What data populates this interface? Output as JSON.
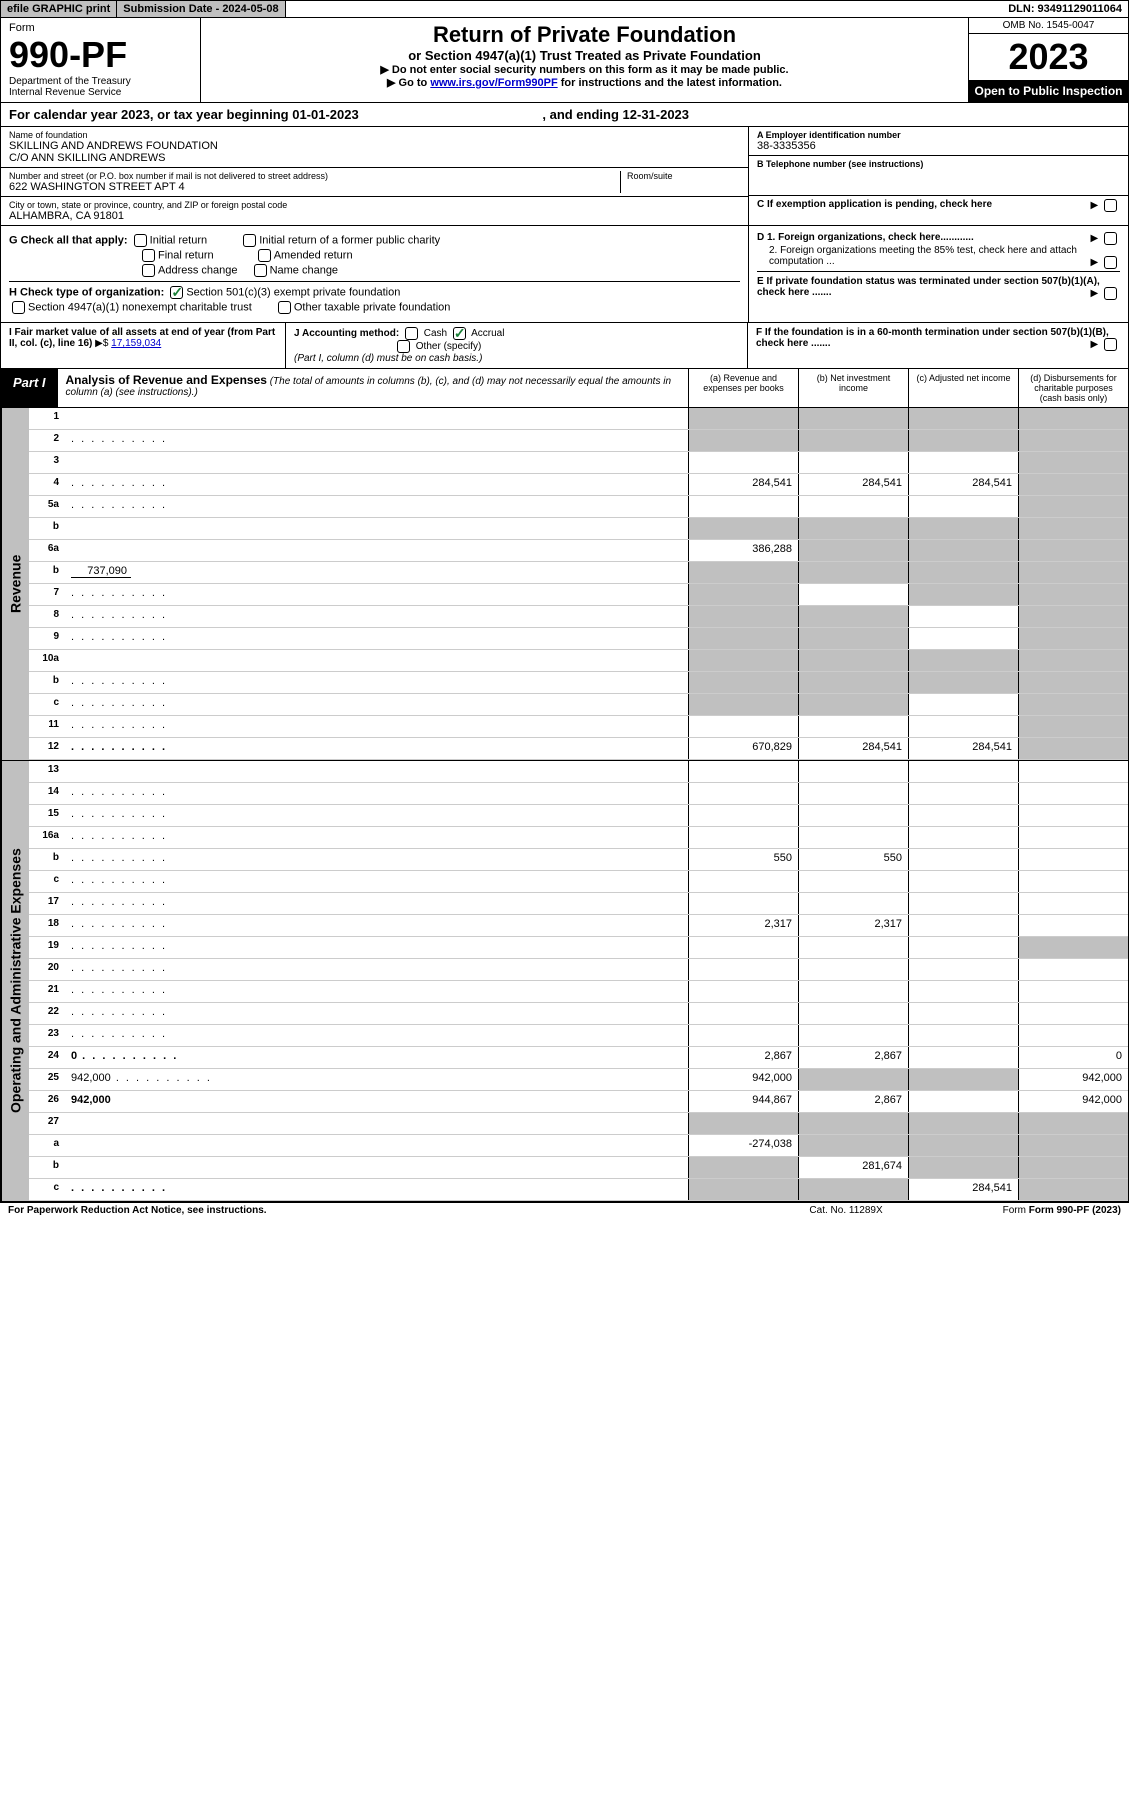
{
  "topbar": {
    "efile": "efile GRAPHIC print",
    "sub_date_label": "Submission Date - 2024-05-08",
    "dln": "DLN: 93491129011064"
  },
  "header": {
    "form_label": "Form",
    "form_no": "990-PF",
    "dept1": "Department of the Treasury",
    "dept2": "Internal Revenue Service",
    "title": "Return of Private Foundation",
    "subtitle": "or Section 4947(a)(1) Trust Treated as Private Foundation",
    "instr1": "▶ Do not enter social security numbers on this form as it may be made public.",
    "instr2_a": "▶ Go to ",
    "instr2_link": "www.irs.gov/Form990PF",
    "instr2_b": " for instructions and the latest information.",
    "omb": "OMB No. 1545-0047",
    "year": "2023",
    "open": "Open to Public Inspection"
  },
  "cal_year": {
    "text_a": "For calendar year 2023, or tax year beginning 01-01-2023",
    "text_b": ", and ending 12-31-2023"
  },
  "entity": {
    "name_label": "Name of foundation",
    "name1": "SKILLING AND ANDREWS FOUNDATION",
    "name2": "C/O ANN SKILLING ANDREWS",
    "addr_label": "Number and street (or P.O. box number if mail is not delivered to street address)",
    "addr": "622 WASHINGTON STREET APT 4",
    "room_label": "Room/suite",
    "city_label": "City or town, state or province, country, and ZIP or foreign postal code",
    "city": "ALHAMBRA, CA  91801",
    "a_label": "A Employer identification number",
    "a_val": "38-3335356",
    "b_label": "B Telephone number (see instructions)",
    "c_label": "C If exemption application is pending, check here"
  },
  "sectionG": {
    "label": "G Check all that apply:",
    "opts": [
      "Initial return",
      "Initial return of a former public charity",
      "Final return",
      "Amended return",
      "Address change",
      "Name change"
    ]
  },
  "sectionD": {
    "d1": "D 1. Foreign organizations, check here............",
    "d2": "2. Foreign organizations meeting the 85% test, check here and attach computation ...",
    "e": "E  If private foundation status was terminated under section 507(b)(1)(A), check here .......",
    "f": "F  If the foundation is in a 60-month termination under section 507(b)(1)(B), check here ......."
  },
  "sectionH": {
    "label": "H Check type of organization:",
    "opt1": "Section 501(c)(3) exempt private foundation",
    "opt2": "Section 4947(a)(1) nonexempt charitable trust",
    "opt3": "Other taxable private foundation"
  },
  "sectionI": {
    "label": "I Fair market value of all assets at end of year (from Part II, col. (c), line 16)",
    "val": "17,159,034"
  },
  "sectionJ": {
    "label": "J Accounting method:",
    "cash": "Cash",
    "accrual": "Accrual",
    "other": "Other (specify)",
    "note": "(Part I, column (d) must be on cash basis.)"
  },
  "part1": {
    "label": "Part I",
    "title": "Analysis of Revenue and Expenses",
    "note": " (The total of amounts in columns (b), (c), and (d) may not necessarily equal the amounts in column (a) (see instructions).)",
    "col_a": "(a) Revenue and expenses per books",
    "col_b": "(b) Net investment income",
    "col_c": "(c) Adjusted net income",
    "col_d": "(d) Disbursements for charitable purposes (cash basis only)"
  },
  "side": {
    "rev": "Revenue",
    "exp": "Operating and Administrative Expenses"
  },
  "rows": [
    {
      "n": "1",
      "d": "",
      "a": "",
      "b": "",
      "c": "",
      "sa": true,
      "sb": true,
      "sc": true,
      "sd": true
    },
    {
      "n": "2",
      "d": "",
      "dots": true,
      "a": "",
      "b": "",
      "c": "",
      "sa": true,
      "sb": true,
      "sc": true,
      "sd": true
    },
    {
      "n": "3",
      "d": "",
      "a": "",
      "b": "",
      "c": "",
      "sd": true
    },
    {
      "n": "4",
      "d": "",
      "dots": true,
      "a": "284,541",
      "b": "284,541",
      "c": "284,541",
      "sd": true
    },
    {
      "n": "5a",
      "d": "",
      "dots": true,
      "a": "",
      "b": "",
      "c": "",
      "sd": true
    },
    {
      "n": "b",
      "d": "",
      "a": "",
      "b": "",
      "c": "",
      "sa": true,
      "sb": true,
      "sc": true,
      "sd": true
    },
    {
      "n": "6a",
      "d": "",
      "a": "386,288",
      "b": "",
      "c": "",
      "sb": true,
      "sc": true,
      "sd": true
    },
    {
      "n": "b",
      "d": "",
      "inline": "737,090",
      "a": "",
      "b": "",
      "c": "",
      "sa": true,
      "sb": true,
      "sc": true,
      "sd": true
    },
    {
      "n": "7",
      "d": "",
      "dots": true,
      "a": "",
      "b": "",
      "c": "",
      "sa": true,
      "sc": true,
      "sd": true
    },
    {
      "n": "8",
      "d": "",
      "dots": true,
      "a": "",
      "b": "",
      "c": "",
      "sa": true,
      "sb": true,
      "sd": true
    },
    {
      "n": "9",
      "d": "",
      "dots": true,
      "a": "",
      "b": "",
      "c": "",
      "sa": true,
      "sb": true,
      "sd": true
    },
    {
      "n": "10a",
      "d": "",
      "a": "",
      "b": "",
      "c": "",
      "sa": true,
      "sb": true,
      "sc": true,
      "sd": true
    },
    {
      "n": "b",
      "d": "",
      "dots": true,
      "a": "",
      "b": "",
      "c": "",
      "sa": true,
      "sb": true,
      "sc": true,
      "sd": true
    },
    {
      "n": "c",
      "d": "",
      "dots": true,
      "a": "",
      "b": "",
      "c": "",
      "sa": true,
      "sb": true,
      "sd": true
    },
    {
      "n": "11",
      "d": "",
      "dots": true,
      "a": "",
      "b": "",
      "c": "",
      "sd": true
    },
    {
      "n": "12",
      "d": "",
      "bold": true,
      "dots": true,
      "a": "670,829",
      "b": "284,541",
      "c": "284,541",
      "sd": true
    }
  ],
  "exp_rows": [
    {
      "n": "13",
      "d": "",
      "a": "",
      "b": "",
      "c": ""
    },
    {
      "n": "14",
      "d": "",
      "dots": true,
      "a": "",
      "b": "",
      "c": ""
    },
    {
      "n": "15",
      "d": "",
      "dots": true,
      "a": "",
      "b": "",
      "c": ""
    },
    {
      "n": "16a",
      "d": "",
      "dots": true,
      "a": "",
      "b": "",
      "c": ""
    },
    {
      "n": "b",
      "d": "",
      "dots": true,
      "a": "550",
      "b": "550",
      "c": ""
    },
    {
      "n": "c",
      "d": "",
      "dots": true,
      "a": "",
      "b": "",
      "c": ""
    },
    {
      "n": "17",
      "d": "",
      "dots": true,
      "a": "",
      "b": "",
      "c": ""
    },
    {
      "n": "18",
      "d": "",
      "dots": true,
      "a": "2,317",
      "b": "2,317",
      "c": ""
    },
    {
      "n": "19",
      "d": "",
      "dots": true,
      "a": "",
      "b": "",
      "c": "",
      "sd": true
    },
    {
      "n": "20",
      "d": "",
      "dots": true,
      "a": "",
      "b": "",
      "c": ""
    },
    {
      "n": "21",
      "d": "",
      "dots": true,
      "a": "",
      "b": "",
      "c": ""
    },
    {
      "n": "22",
      "d": "",
      "dots": true,
      "a": "",
      "b": "",
      "c": ""
    },
    {
      "n": "23",
      "d": "",
      "dots": true,
      "a": "",
      "b": "",
      "c": ""
    },
    {
      "n": "24",
      "d": "0",
      "bold": true,
      "dots": true,
      "a": "2,867",
      "b": "2,867",
      "c": ""
    },
    {
      "n": "25",
      "d": "942,000",
      "dots": true,
      "a": "942,000",
      "b": "",
      "c": "",
      "sb": true,
      "sc": true
    },
    {
      "n": "26",
      "d": "942,000",
      "bold": true,
      "a": "944,867",
      "b": "2,867",
      "c": ""
    },
    {
      "n": "27",
      "d": "",
      "a": "",
      "b": "",
      "c": "",
      "sa": true,
      "sb": true,
      "sc": true,
      "sd": true
    },
    {
      "n": "a",
      "d": "",
      "bold": true,
      "a": "-274,038",
      "b": "",
      "c": "",
      "sb": true,
      "sc": true,
      "sd": true
    },
    {
      "n": "b",
      "d": "",
      "bold": true,
      "a": "",
      "b": "281,674",
      "c": "",
      "sa": true,
      "sc": true,
      "sd": true
    },
    {
      "n": "c",
      "d": "",
      "bold": true,
      "dots": true,
      "a": "",
      "b": "",
      "c": "284,541",
      "sa": true,
      "sb": true,
      "sd": true
    }
  ],
  "footer": {
    "left": "For Paperwork Reduction Act Notice, see instructions.",
    "mid": "Cat. No. 11289X",
    "right": "Form 990-PF (2023)"
  }
}
